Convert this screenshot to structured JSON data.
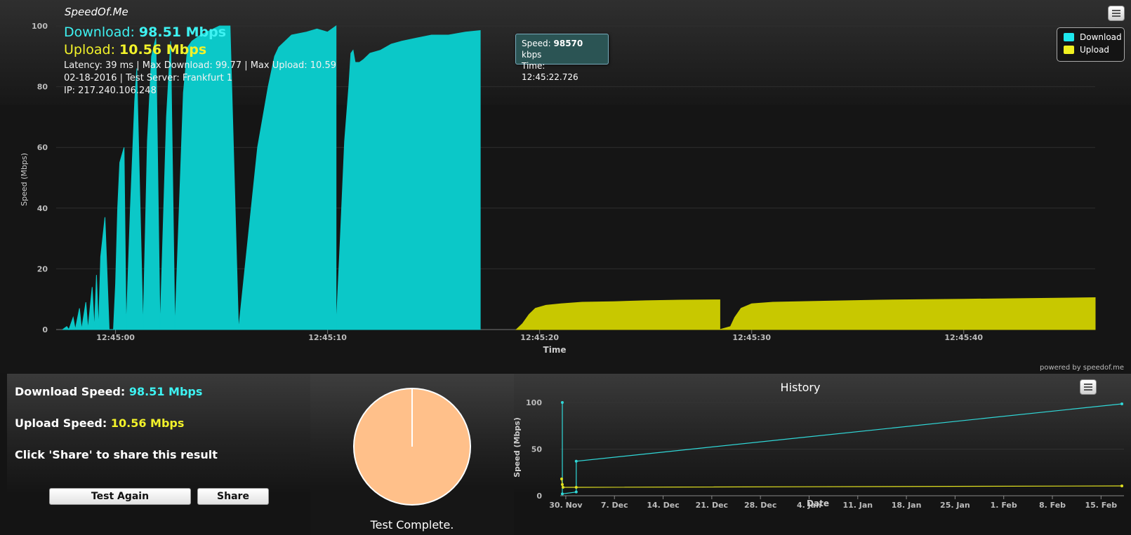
{
  "app": {
    "brand": "SpeedOf.Me",
    "powered": "powered by speedof.me"
  },
  "summary": {
    "download_label": "Download:",
    "download_value": "98.51 Mbps",
    "upload_label": "Upload:",
    "upload_value": "10.56 Mbps",
    "info_line1": "Latency: 39 ms | Max Download: 99.77 | Max Upload: 10.59",
    "info_line2": "02-18-2016 | Test Server: Frankfurt 1",
    "info_line3": "IP: 217.240.106.248"
  },
  "tooltip": {
    "speed_label": "Speed:",
    "speed_value": "98570",
    "speed_unit": "kbps",
    "time_label": "Time:",
    "time_value": "12:45:22.726"
  },
  "legend": {
    "download": "Download",
    "upload": "Upload"
  },
  "menu": {
    "icon": "hamburger-menu-icon"
  },
  "colors": {
    "download": "#0bc8c8",
    "upload": "#c8c800",
    "download_text": "#3ef2f2",
    "upload_text": "#f2f22a",
    "gauge_fill": "#ffc08a",
    "history_download": "#30d8d8",
    "history_upload": "#e0e020"
  },
  "stats": {
    "download_label": "Download Speed:",
    "download_value": "98.51 Mbps",
    "upload_label": "Upload Speed:",
    "upload_value": "10.56 Mbps",
    "share_hint": "Click 'Share' to share this result"
  },
  "buttons": {
    "test_again": "Test Again",
    "share": "Share"
  },
  "gauge": {
    "status": "Test Complete.",
    "progress_percent": 100
  },
  "chart_data": [
    {
      "type": "area",
      "xlabel": "Time",
      "ylabel": "Speed (Mbps)",
      "ylim": [
        0,
        100
      ],
      "yticks": [
        0,
        20,
        40,
        60,
        80,
        100
      ],
      "xticks": [
        "12:45:00",
        "12:45:10",
        "12:45:20",
        "12:45:30",
        "12:45:40"
      ],
      "xlim_seconds_after_12_44_50": [
        7.2,
        56.2
      ],
      "x_tick_values": [
        10,
        20,
        30,
        40,
        50
      ],
      "grid": true,
      "legend_position": "top-right",
      "series": [
        {
          "name": "Download",
          "x": [
            7.5,
            7.7,
            7.8,
            8.0,
            8.1,
            8.3,
            8.4,
            8.6,
            8.7,
            8.9,
            9.0,
            9.1,
            9.2,
            9.3,
            9.5,
            9.7,
            9.9,
            10.0,
            10.1,
            10.2,
            10.4,
            10.5,
            10.7,
            10.9,
            11.0,
            11.3,
            11.5,
            11.7,
            11.9,
            12.1,
            12.4,
            12.6,
            12.8,
            13.2,
            13.4,
            13.6,
            14.0,
            14.3,
            14.6,
            14.9,
            15.4,
            15.8,
            16.1,
            16.7,
            17.2,
            17.5,
            17.7,
            18.3,
            19.0,
            19.5,
            20.0,
            20.4,
            20.4,
            20.6,
            20.8,
            21.0,
            21.1,
            21.2,
            21.3,
            21.5,
            21.7,
            22.0,
            22.5,
            23.0,
            23.5,
            24.2,
            24.9,
            25.7,
            26.5,
            27.2,
            27.2
          ],
          "y": [
            0,
            1,
            0,
            4,
            0,
            7,
            0,
            9,
            0,
            14,
            0,
            18,
            0,
            24,
            37,
            0,
            0,
            15,
            40,
            55,
            60,
            0,
            40,
            75,
            86,
            0,
            62,
            90,
            96,
            0,
            70,
            95,
            0,
            78,
            93,
            95,
            97,
            98,
            99,
            100,
            100,
            0,
            20,
            60,
            80,
            90,
            93,
            97,
            98,
            99,
            98,
            100,
            0,
            30,
            62,
            80,
            91,
            92,
            88,
            88,
            89,
            91,
            92,
            94,
            95,
            96,
            97,
            97,
            98,
            98.5,
            0
          ]
        },
        {
          "name": "Upload",
          "x": [
            28.9,
            29.2,
            29.5,
            29.8,
            30.3,
            31.0,
            32.0,
            33.5,
            35.0,
            36.6,
            38.5,
            38.5,
            39.0,
            39.2,
            39.5,
            40.0,
            41.0,
            43.0,
            46.0,
            50.0,
            54.0,
            56.2
          ],
          "y": [
            0,
            2,
            5,
            7,
            8,
            8.5,
            9,
            9.2,
            9.5,
            9.7,
            9.8,
            0,
            1,
            4,
            7,
            8.5,
            9,
            9.3,
            9.7,
            10,
            10.3,
            10.5
          ]
        }
      ]
    },
    {
      "type": "line",
      "title": "History",
      "xlabel": "Date",
      "ylabel": "Speed (Mbps)",
      "ylim": [
        0,
        100
      ],
      "yticks": [
        0,
        50,
        100
      ],
      "xticks": [
        "30. Nov",
        "7. Dec",
        "14. Dec",
        "21. Dec",
        "28. Dec",
        "4. Jan",
        "11. Jan",
        "18. Jan",
        "25. Jan",
        "1. Feb",
        "8. Feb",
        "15. Feb"
      ],
      "xlim_days_after_30_nov": [
        -0.8,
        80.3
      ],
      "grid": true,
      "series": [
        {
          "name": "Download",
          "x": [
            -0.5,
            -0.5,
            1.5,
            1.5,
            80
          ],
          "y": [
            100,
            2,
            4,
            37,
            98.5
          ]
        },
        {
          "name": "Upload",
          "x": [
            -0.6,
            -0.5,
            -0.4,
            1.5,
            80
          ],
          "y": [
            18,
            12,
            9,
            9,
            10.5
          ]
        }
      ]
    }
  ]
}
